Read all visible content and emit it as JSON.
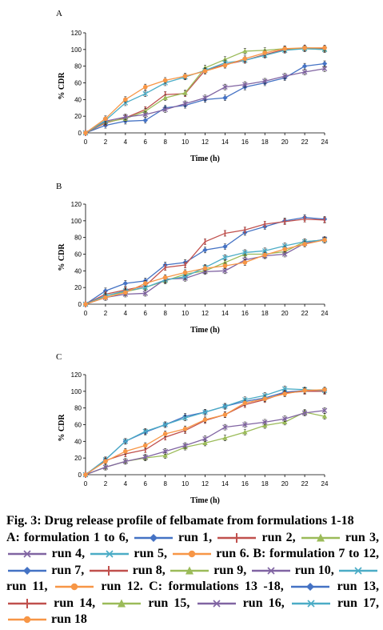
{
  "panels": [
    {
      "label": "A"
    },
    {
      "label": "B"
    },
    {
      "label": "C"
    }
  ],
  "caption": {
    "title": "Fig. 3: Drug release profile of felbamate from formulations 1-18",
    "segments": [
      {
        "text": "A: formulation 1 to 6, "
      },
      {
        "swatch": 0
      },
      {
        "text": " run 1, "
      },
      {
        "swatch": 1
      },
      {
        "text": " run 2, "
      },
      {
        "swatch": 2
      },
      {
        "text": " run 3, "
      },
      {
        "swatch": 3
      },
      {
        "text": " run 4, "
      },
      {
        "swatch": 4
      },
      {
        "text": " run 5, "
      },
      {
        "swatch": 5
      },
      {
        "text": " run 6. B: formulation 7 to 12, "
      },
      {
        "swatch": 0
      },
      {
        "text": " run 7, "
      },
      {
        "swatch": 1
      },
      {
        "text": " run 8, "
      },
      {
        "swatch": 2
      },
      {
        "text": " run 9, "
      },
      {
        "swatch": 3
      },
      {
        "text": " run 10, "
      },
      {
        "swatch": 4
      },
      {
        "text": " run 11, "
      },
      {
        "swatch": 5
      },
      {
        "text": " run 12. C: formulations 13 -18, "
      },
      {
        "swatch": 0
      },
      {
        "text": " run 13, "
      },
      {
        "swatch": 1
      },
      {
        "text": " run 14, "
      },
      {
        "swatch": 2
      },
      {
        "text": " run 15, "
      },
      {
        "swatch": 3
      },
      {
        "text": " run 16, "
      },
      {
        "swatch": 4
      },
      {
        "text": " run 17, "
      },
      {
        "swatch": 5
      },
      {
        "text": " run 18"
      }
    ]
  },
  "series_styles": [
    {
      "color": "#4472C4",
      "marker": "diamond"
    },
    {
      "color": "#C0504D",
      "marker": "bar"
    },
    {
      "color": "#9BBB59",
      "marker": "triangle"
    },
    {
      "color": "#8064A2",
      "marker": "x"
    },
    {
      "color": "#4BACC6",
      "marker": "x"
    },
    {
      "color": "#F79646",
      "marker": "circle"
    }
  ],
  "chart_data": [
    {
      "type": "line",
      "panel": "A",
      "xlabel": "Time (h)",
      "ylabel": "% CDR",
      "xlim": [
        0,
        24
      ],
      "ylim": [
        0,
        120
      ],
      "xticks": [
        0,
        2,
        4,
        6,
        8,
        10,
        12,
        14,
        16,
        18,
        20,
        22,
        24
      ],
      "yticks": [
        0,
        20,
        40,
        60,
        80,
        100,
        120
      ],
      "grid": false,
      "x": [
        0,
        2,
        4,
        6,
        8,
        10,
        12,
        14,
        16,
        18,
        20,
        22,
        24
      ],
      "series": [
        {
          "values": [
            0,
            9,
            14,
            15,
            30,
            33,
            40,
            42,
            55,
            60,
            66,
            80,
            83
          ]
        },
        {
          "values": [
            0,
            12,
            18,
            28,
            46,
            47,
            75,
            82,
            87,
            94,
            100,
            102,
            101
          ]
        },
        {
          "values": [
            0,
            13,
            17,
            26,
            42,
            48,
            78,
            88,
            98,
            99,
            101,
            101,
            100
          ]
        },
        {
          "values": [
            0,
            14,
            19,
            22,
            28,
            35,
            42,
            55,
            58,
            62,
            68,
            73,
            77
          ]
        },
        {
          "values": [
            0,
            15,
            36,
            47,
            60,
            67,
            75,
            84,
            87,
            93,
            99,
            101,
            100
          ]
        },
        {
          "values": [
            0,
            17,
            40,
            55,
            63,
            68,
            74,
            81,
            89,
            96,
            101,
            102,
            102
          ]
        }
      ]
    },
    {
      "type": "line",
      "panel": "B",
      "xlabel": "Time (h)",
      "ylabel": "% CDR",
      "xlim": [
        0,
        24
      ],
      "ylim": [
        0,
        120
      ],
      "xticks": [
        0,
        2,
        4,
        6,
        8,
        10,
        12,
        14,
        16,
        18,
        20,
        22,
        24
      ],
      "yticks": [
        0,
        20,
        40,
        60,
        80,
        100,
        120
      ],
      "grid": false,
      "x": [
        0,
        2,
        4,
        6,
        8,
        10,
        12,
        14,
        16,
        18,
        20,
        22,
        24
      ],
      "series": [
        {
          "values": [
            0,
            16,
            25,
            28,
            47,
            50,
            65,
            69,
            86,
            93,
            100,
            104,
            102
          ]
        },
        {
          "values": [
            0,
            12,
            17,
            22,
            44,
            47,
            75,
            85,
            89,
            96,
            99,
            102,
            101
          ]
        },
        {
          "values": [
            0,
            10,
            15,
            20,
            28,
            36,
            40,
            50,
            60,
            60,
            63,
            75,
            77
          ]
        },
        {
          "values": [
            0,
            8,
            12,
            13,
            30,
            31,
            39,
            40,
            53,
            58,
            60,
            73,
            78
          ]
        },
        {
          "values": [
            0,
            10,
            16,
            20,
            29,
            33,
            44,
            56,
            62,
            64,
            70,
            75,
            77
          ]
        },
        {
          "values": [
            0,
            8,
            14,
            25,
            32,
            38,
            43,
            46,
            50,
            59,
            66,
            72,
            77
          ]
        }
      ]
    },
    {
      "type": "line",
      "panel": "C",
      "xlabel": "Time (h)",
      "ylabel": "% CDR",
      "xlim": [
        0,
        24
      ],
      "ylim": [
        0,
        120
      ],
      "xticks": [
        0,
        2,
        4,
        6,
        8,
        10,
        12,
        14,
        16,
        18,
        20,
        22,
        24
      ],
      "yticks": [
        0,
        20,
        40,
        60,
        80,
        100,
        120
      ],
      "grid": false,
      "x": [
        0,
        2,
        4,
        6,
        8,
        10,
        12,
        14,
        16,
        18,
        20,
        22,
        24
      ],
      "series": [
        {
          "values": [
            0,
            18,
            40,
            51,
            60,
            70,
            75,
            82,
            88,
            92,
            99,
            101,
            101
          ]
        },
        {
          "values": [
            0,
            17,
            25,
            30,
            45,
            53,
            65,
            72,
            84,
            90,
            98,
            100,
            100
          ]
        },
        {
          "values": [
            0,
            9,
            16,
            20,
            23,
            33,
            38,
            44,
            51,
            59,
            63,
            75,
            70
          ]
        },
        {
          "values": [
            0,
            9,
            16,
            21,
            28,
            35,
            43,
            57,
            60,
            63,
            67,
            74,
            77
          ]
        },
        {
          "values": [
            0,
            18,
            40,
            52,
            60,
            68,
            75,
            82,
            90,
            95,
            103,
            102,
            101
          ]
        },
        {
          "values": [
            0,
            16,
            28,
            35,
            49,
            55,
            66,
            72,
            86,
            91,
            97,
            101,
            102
          ]
        }
      ]
    }
  ]
}
